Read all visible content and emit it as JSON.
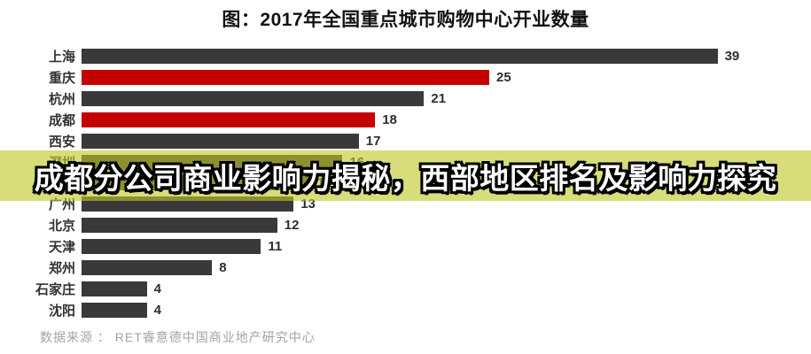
{
  "title": "图：2017年全国重点城市购物中心开业数量",
  "overlay": {
    "headline": "成都分公司商业影响力揭秘，西部地区排名及影响力探究"
  },
  "source": {
    "label": "数据来源 ：  RET睿意德中国商业地产研究中心"
  },
  "colors": {
    "bar_default": "#3a383a",
    "bar_highlight": "#c40000",
    "overlay_band": "rgba(192,198,40,0.62)",
    "headline_text": "#ffffff",
    "headline_outline": "#000000"
  },
  "chart_data": {
    "type": "bar",
    "orientation": "horizontal",
    "title": "图：2017年全国重点城市购物中心开业数量",
    "categories": [
      "上海",
      "重庆",
      "杭州",
      "成都",
      "西安",
      "深圳",
      "武汉",
      "广州",
      "北京",
      "天津",
      "郑州",
      "石家庄",
      "沈阳"
    ],
    "values": [
      39,
      25,
      21,
      18,
      17,
      16,
      14,
      13,
      12,
      11,
      8,
      4,
      4
    ],
    "highlighted_categories": [
      "重庆",
      "成都"
    ],
    "xlim": [
      0,
      39
    ],
    "grid": false,
    "legend": false,
    "value_labels": "end-of-bar"
  }
}
